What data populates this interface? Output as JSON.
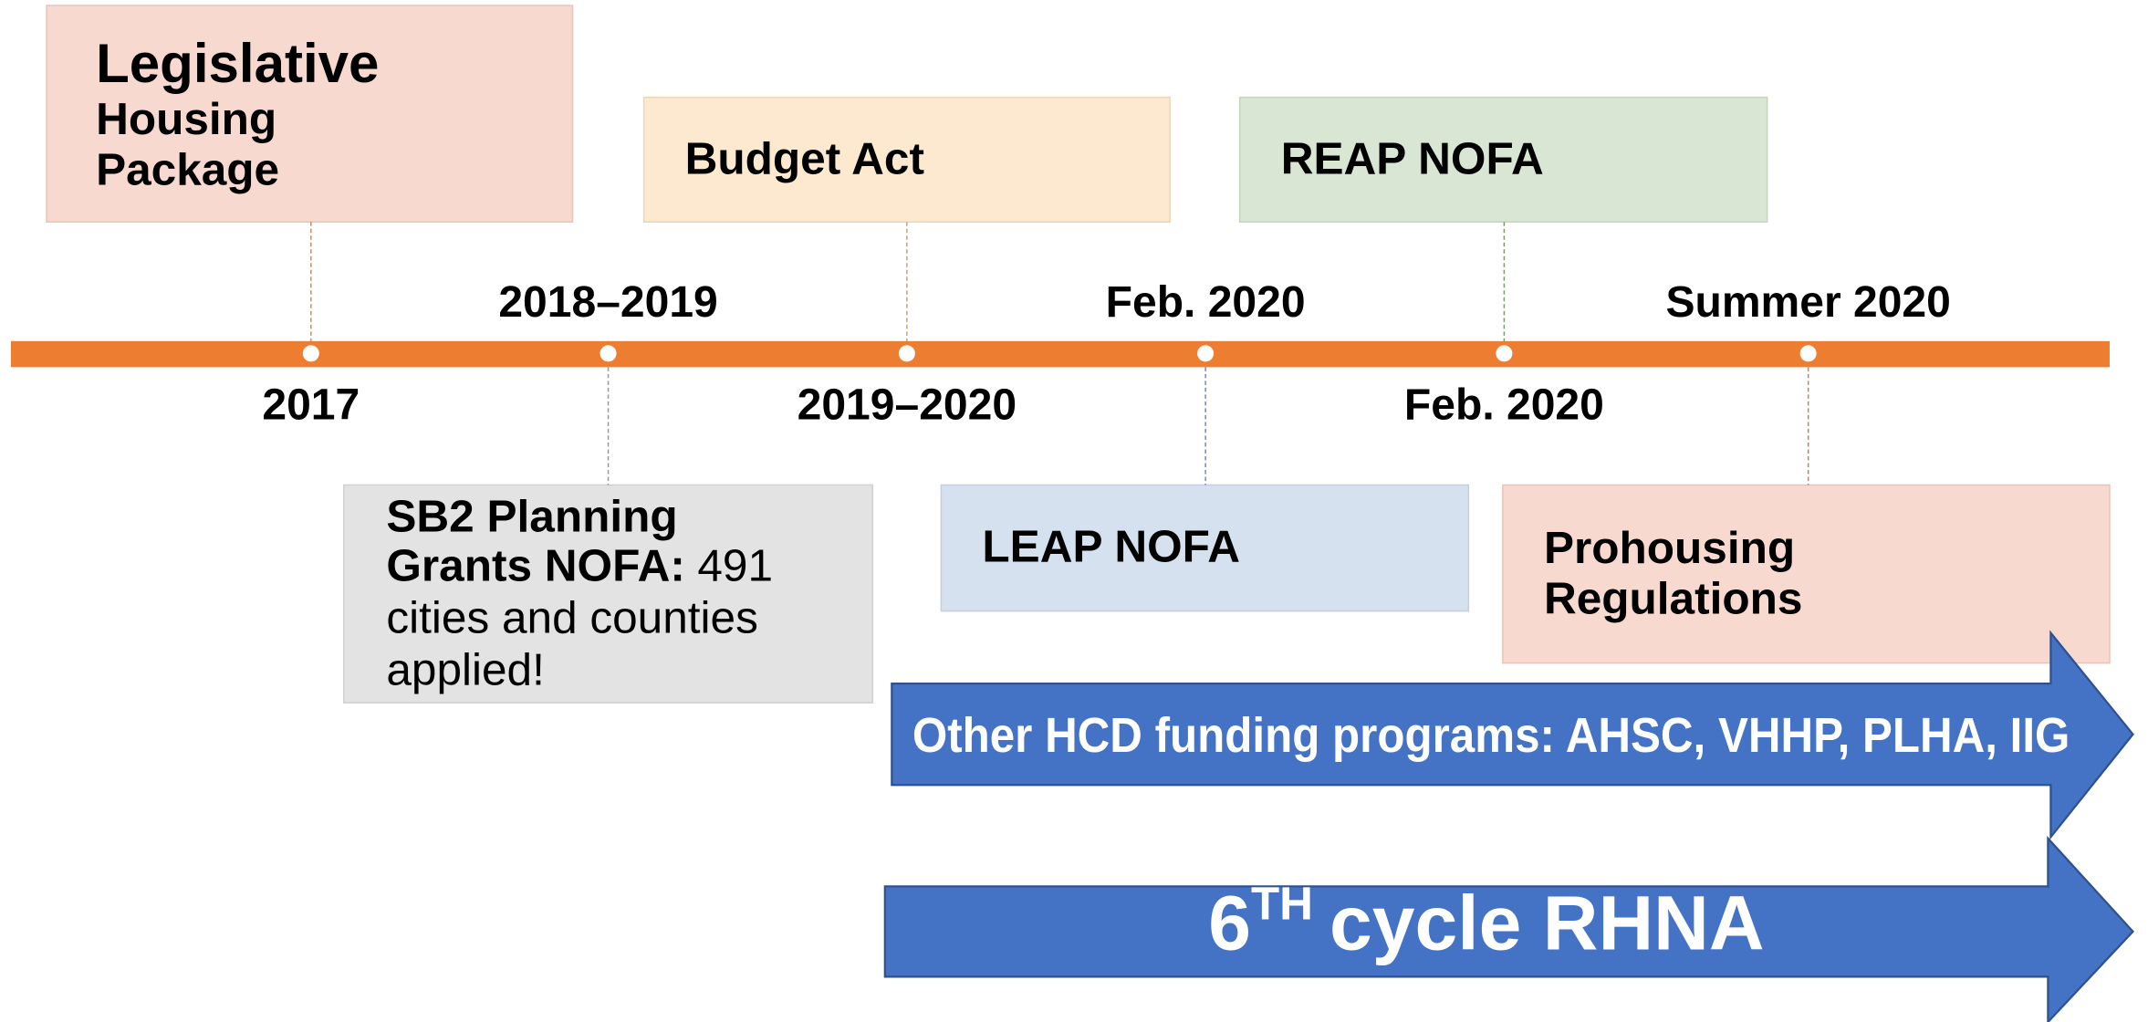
{
  "timeline": {
    "dates": [
      "2017",
      "2018–2019",
      "2019–2020",
      "Feb. 2020",
      "Feb. 2020",
      "Summer 2020"
    ]
  },
  "boxes": {
    "legislative": {
      "lines": [
        "Legislative",
        "Housing",
        "Package"
      ]
    },
    "sb2": {
      "lines": [
        "SB2 Planning",
        "Grants NOFA:"
      ],
      "detail": [
        "491",
        "cities and counties",
        "applied!"
      ]
    },
    "budget": {
      "title": "Budget Act"
    },
    "leap": {
      "title": "LEAP NOFA"
    },
    "reap": {
      "title": "REAP NOFA"
    },
    "prohousing": {
      "lines": [
        "Prohousing",
        "Regulations"
      ]
    }
  },
  "arrows": {
    "other": {
      "label": "Other HCD funding programs: AHSC, VHHP, PLHA, IIG"
    },
    "rhna": {
      "number": "6",
      "superscript": "TH",
      "label": "cycle RHNA"
    }
  }
}
